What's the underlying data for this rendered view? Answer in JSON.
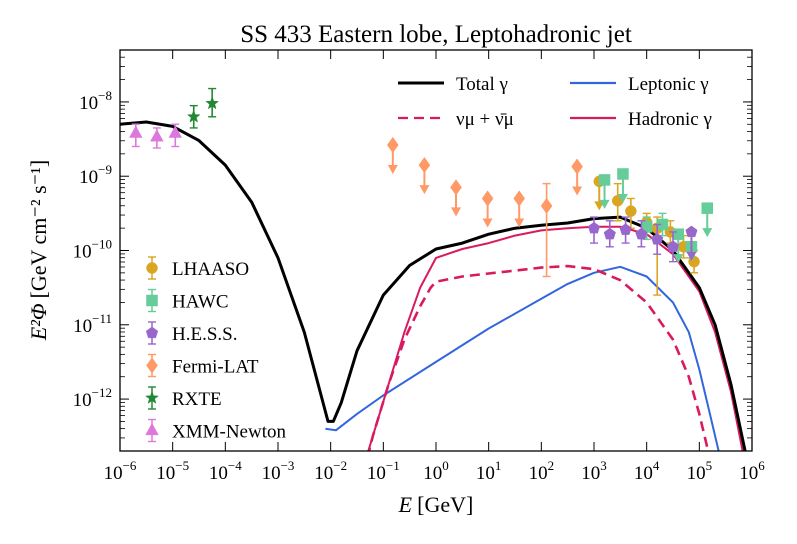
{
  "chart_data": {
    "type": "line",
    "title": "SS 433 Eastern lobe, Leptohadronic jet",
    "xlabel": {
      "main": "E",
      "unit": "[GeV]"
    },
    "ylabel": {
      "main": "E²Φ",
      "unit": "[GeV cm⁻² s⁻¹]"
    },
    "x_scale": "log",
    "y_scale": "log",
    "xlim": [
      1e-06,
      1000000.0
    ],
    "ylim": [
      2e-13,
      5e-08
    ],
    "x_ticks": [
      {
        "value": -6,
        "label": "10",
        "exp": "−6"
      },
      {
        "value": -5,
        "label": "10",
        "exp": "−5"
      },
      {
        "value": -4,
        "label": "10",
        "exp": "−4"
      },
      {
        "value": -3,
        "label": "10",
        "exp": "−3"
      },
      {
        "value": -2,
        "label": "10",
        "exp": "−2"
      },
      {
        "value": -1,
        "label": "10",
        "exp": "−1"
      },
      {
        "value": 0,
        "label": "10",
        "exp": "0"
      },
      {
        "value": 1,
        "label": "10",
        "exp": "1"
      },
      {
        "value": 2,
        "label": "10",
        "exp": "2"
      },
      {
        "value": 3,
        "label": "10",
        "exp": "3"
      },
      {
        "value": 4,
        "label": "10",
        "exp": "4"
      },
      {
        "value": 5,
        "label": "10",
        "exp": "5"
      },
      {
        "value": 6,
        "label": "10",
        "exp": "6"
      }
    ],
    "y_ticks": [
      {
        "value": -12,
        "label": "10",
        "exp": "−12"
      },
      {
        "value": -11,
        "label": "10",
        "exp": "−11"
      },
      {
        "value": -10,
        "label": "10",
        "exp": "−10"
      },
      {
        "value": -9,
        "label": "10",
        "exp": "−9"
      },
      {
        "value": -8,
        "label": "10",
        "exp": "−8"
      }
    ],
    "series": [
      {
        "name": "Total γ",
        "color": "#000000",
        "dash": "solid",
        "points_log": [
          [
            -6,
            -8.3
          ],
          [
            -5.5,
            -8.27
          ],
          [
            -5,
            -8.33
          ],
          [
            -4.5,
            -8.52
          ],
          [
            -4,
            -8.85
          ],
          [
            -3.5,
            -9.35
          ],
          [
            -3,
            -10.1
          ],
          [
            -2.5,
            -11.1
          ],
          [
            -2.2,
            -11.9
          ],
          [
            -2.05,
            -12.3
          ],
          [
            -1.95,
            -12.3
          ],
          [
            -1.8,
            -12.05
          ],
          [
            -1.5,
            -11.35
          ],
          [
            -1,
            -10.6
          ],
          [
            -0.5,
            -10.2
          ],
          [
            0,
            -9.98
          ],
          [
            0.5,
            -9.9
          ],
          [
            1,
            -9.78
          ],
          [
            1.5,
            -9.7
          ],
          [
            2,
            -9.66
          ],
          [
            2.5,
            -9.63
          ],
          [
            3,
            -9.57
          ],
          [
            3.5,
            -9.55
          ],
          [
            4,
            -9.7
          ],
          [
            4.5,
            -10
          ],
          [
            5,
            -10.5
          ],
          [
            5.3,
            -11
          ],
          [
            5.6,
            -11.8
          ],
          [
            5.9,
            -12.8
          ],
          [
            6,
            -13.2
          ]
        ]
      },
      {
        "name": "νμ + ν̄μ",
        "color": "#d81b60",
        "dash": "dashed",
        "points_log": [
          [
            -1.45,
            -13.2
          ],
          [
            -1.2,
            -12.5
          ],
          [
            -0.9,
            -11.8
          ],
          [
            -0.6,
            -11.2
          ],
          [
            -0.3,
            -10.75
          ],
          [
            -0.1,
            -10.5
          ],
          [
            0,
            -10.42
          ],
          [
            0.5,
            -10.35
          ],
          [
            1,
            -10.31
          ],
          [
            1.5,
            -10.27
          ],
          [
            2,
            -10.23
          ],
          [
            2.5,
            -10.21
          ],
          [
            3,
            -10.25
          ],
          [
            3.5,
            -10.4
          ],
          [
            4,
            -10.7
          ],
          [
            4.5,
            -11.2
          ],
          [
            4.8,
            -11.7
          ],
          [
            5,
            -12.2
          ],
          [
            5.2,
            -12.8
          ],
          [
            5.35,
            -13.2
          ]
        ]
      },
      {
        "name": "Leptonic γ",
        "color": "#3366dd",
        "dash": "solid",
        "points_log": [
          [
            -2.1,
            -12.4
          ],
          [
            -1.9,
            -12.42
          ],
          [
            -1.5,
            -12.2
          ],
          [
            -1,
            -11.95
          ],
          [
            0,
            -11.5
          ],
          [
            1,
            -11.05
          ],
          [
            2,
            -10.65
          ],
          [
            2.5,
            -10.45
          ],
          [
            3,
            -10.3
          ],
          [
            3.5,
            -10.22
          ],
          [
            4,
            -10.35
          ],
          [
            4.5,
            -10.7
          ],
          [
            4.8,
            -11.1
          ],
          [
            5,
            -11.6
          ],
          [
            5.2,
            -12.2
          ],
          [
            5.4,
            -12.8
          ],
          [
            5.5,
            -13.2
          ]
        ]
      },
      {
        "name": "Hadronic γ",
        "color": "#d81b60",
        "dash": "solid",
        "points_log": [
          [
            -1.5,
            -13.2
          ],
          [
            -1.2,
            -12.5
          ],
          [
            -0.9,
            -11.8
          ],
          [
            -0.6,
            -11.1
          ],
          [
            -0.3,
            -10.5
          ],
          [
            0,
            -10.1
          ],
          [
            0.5,
            -9.98
          ],
          [
            1,
            -9.9
          ],
          [
            1.5,
            -9.8
          ],
          [
            2,
            -9.73
          ],
          [
            2.5,
            -9.7
          ],
          [
            3,
            -9.68
          ],
          [
            3.5,
            -9.68
          ],
          [
            4,
            -9.78
          ],
          [
            4.5,
            -10.05
          ],
          [
            5,
            -10.55
          ],
          [
            5.3,
            -11.1
          ],
          [
            5.6,
            -11.9
          ],
          [
            5.85,
            -12.8
          ],
          [
            6,
            -13.2
          ]
        ]
      }
    ],
    "data_points": [
      {
        "name": "LHAASO",
        "color": "#daa520",
        "marker": "circle",
        "points": [
          {
            "x": 3.1,
            "y": -9.07,
            "ul": true
          },
          {
            "x": 3.45,
            "y": -9.33,
            "lo": -9.6,
            "hi": -9.1
          },
          {
            "x": 3.7,
            "y": -9.47,
            "lo": -9.7,
            "hi": -9.3
          },
          {
            "x": 4.0,
            "y": -9.62,
            "lo": -9.75,
            "hi": -9.5
          },
          {
            "x": 4.2,
            "y": -9.7,
            "lo": -10.6,
            "hi": -9.55
          },
          {
            "x": 4.45,
            "y": -9.75,
            "lo": -9.9,
            "hi": -9.6
          },
          {
            "x": 4.7,
            "y": -9.95,
            "lo": -10.1,
            "hi": -9.8
          },
          {
            "x": 4.9,
            "y": -10.15,
            "lo": -10.3,
            "hi": -10.0
          }
        ]
      },
      {
        "name": "HAWC",
        "color": "#66cc99",
        "marker": "square",
        "points": [
          {
            "x": 3.2,
            "y": -9.05,
            "ul": true
          },
          {
            "x": 3.55,
            "y": -8.97,
            "ul": true
          },
          {
            "x": 4.0,
            "y": -9.68,
            "lo": -9.85,
            "hi": -9.55
          },
          {
            "x": 4.3,
            "y": -9.65,
            "lo": -9.8,
            "hi": -9.5
          },
          {
            "x": 4.6,
            "y": -9.78,
            "ul": true
          },
          {
            "x": 4.85,
            "y": -9.95,
            "lo": -10.1,
            "hi": -9.8
          },
          {
            "x": 5.15,
            "y": -9.43,
            "ul": true
          }
        ]
      },
      {
        "name": "H.E.S.S.",
        "color": "#9966cc",
        "marker": "pentagon",
        "points": [
          {
            "x": 3.0,
            "y": -9.7,
            "lo": -9.9,
            "hi": -9.55
          },
          {
            "x": 3.3,
            "y": -9.78,
            "lo": -9.95,
            "hi": -9.6
          },
          {
            "x": 3.6,
            "y": -9.72,
            "lo": -9.9,
            "hi": -9.55
          },
          {
            "x": 3.9,
            "y": -9.78,
            "lo": -9.95,
            "hi": -9.6
          },
          {
            "x": 4.2,
            "y": -9.85,
            "lo": -10.05,
            "hi": -9.65
          },
          {
            "x": 4.5,
            "y": -9.95,
            "lo": -10.15,
            "hi": -9.75
          },
          {
            "x": 4.85,
            "y": -9.75,
            "ul": true
          }
        ]
      },
      {
        "name": "Fermi-LAT",
        "color": "#ff9966",
        "marker": "diamond",
        "points": [
          {
            "x": -0.82,
            "y": -8.58,
            "ul": true
          },
          {
            "x": -0.22,
            "y": -8.85,
            "ul": true
          },
          {
            "x": 0.38,
            "y": -9.15,
            "ul": true
          },
          {
            "x": 0.98,
            "y": -9.3,
            "ul": true
          },
          {
            "x": 1.58,
            "y": -9.3,
            "ul": true
          },
          {
            "x": 2.1,
            "y": -9.4,
            "lo": -10.35,
            "hi": -9.1
          },
          {
            "x": 2.68,
            "y": -8.87,
            "ul": true
          }
        ]
      },
      {
        "name": "RXTE",
        "color": "#228833",
        "marker": "star",
        "points": [
          {
            "x": -4.6,
            "y": -8.2,
            "lo": -8.35,
            "hi": -8.05
          },
          {
            "x": -4.25,
            "y": -8.02,
            "lo": -8.2,
            "hi": -7.82
          }
        ]
      },
      {
        "name": "XMM-Newton",
        "color": "#dd77dd",
        "marker": "triangle",
        "points": [
          {
            "x": -5.7,
            "y": -8.42,
            "lo": -8.6,
            "hi": -8.3
          },
          {
            "x": -5.3,
            "y": -8.47,
            "lo": -8.62,
            "hi": -8.35
          },
          {
            "x": -4.95,
            "y": -8.42,
            "lo": -8.6,
            "hi": -8.3
          }
        ]
      }
    ],
    "legend_top": [
      {
        "label": "Total γ",
        "series": 0
      },
      {
        "label": "Leptonic γ",
        "series": 2
      },
      {
        "label": "νμ + ν̄μ",
        "series": 1
      },
      {
        "label": "Hadronic γ",
        "series": 3
      }
    ],
    "legend_bottom_position": "lower-left",
    "legend_top_position": "upper-right"
  }
}
